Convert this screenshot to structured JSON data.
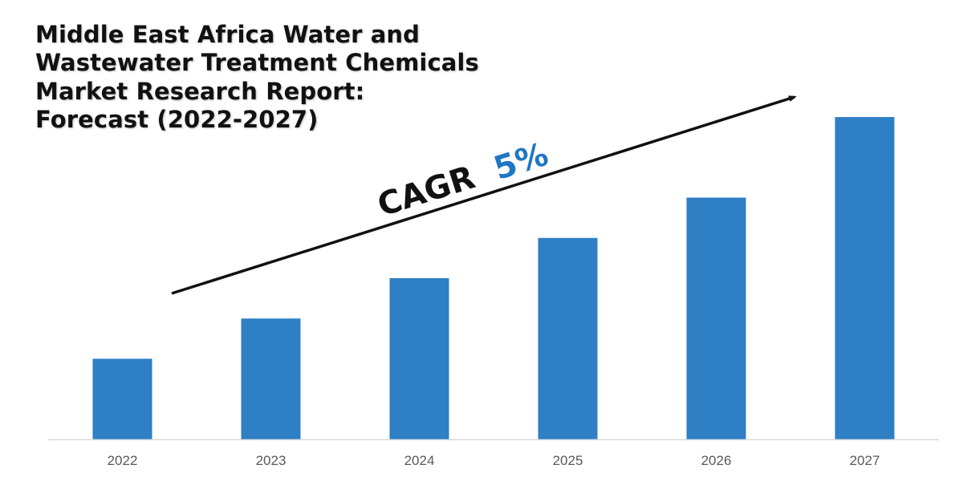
{
  "colors": {
    "bar": "#2e7fc4",
    "arrow": "#111111",
    "cagr_value": "#1f77c4",
    "axis": "#d9d9d9",
    "title": "#111111"
  },
  "chart_data": {
    "type": "bar",
    "title": "Middle East Africa Water and Wastewater Treatment Chemicals Market Research Report: Forecast (2022-2027)",
    "categories": [
      "2022",
      "2023",
      "2024",
      "2025",
      "2026",
      "2027"
    ],
    "values": [
      1.0,
      1.5,
      2.0,
      2.5,
      3.0,
      4.0
    ],
    "ylim": [
      0,
      4.0
    ],
    "xlabel": "",
    "ylabel": "",
    "grid": false,
    "annotation": {
      "label": "CAGR",
      "value": "5%"
    }
  }
}
